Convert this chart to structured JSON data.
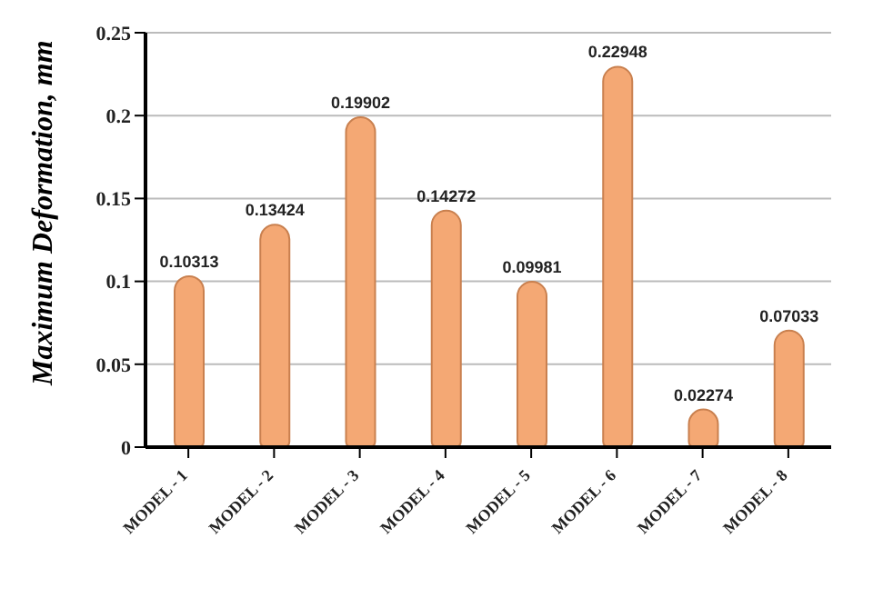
{
  "chart_data": {
    "type": "bar",
    "ylabel": "Maximum Deformation, mm",
    "categories": [
      "MODEL - 1",
      "MODEL - 2",
      "MODEL - 3",
      "MODEL - 4",
      "MODEL - 5",
      "MODEL - 6",
      "MODEL - 7",
      "MODEL - 8"
    ],
    "values": [
      0.10313,
      0.13424,
      0.19902,
      0.14272,
      0.09981,
      0.22948,
      0.02274,
      0.07033
    ],
    "color": "#f4a874",
    "ylim": [
      0,
      0.25
    ],
    "yticks": [
      0,
      0.05,
      0.1,
      0.15,
      0.2,
      0.25
    ],
    "grid": "y",
    "data_labels": true
  }
}
